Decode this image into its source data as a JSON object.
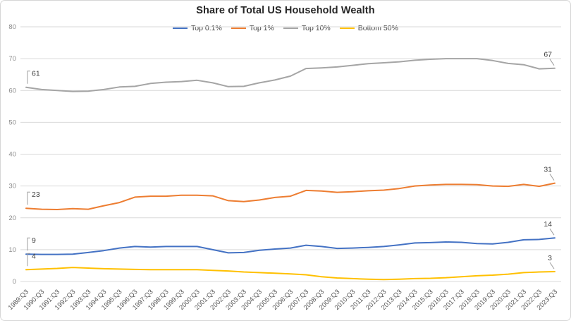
{
  "chart_data": {
    "type": "line",
    "title": "Share of Total US Household Wealth",
    "xlabel": "",
    "ylabel": "",
    "ylim": [
      0,
      80
    ],
    "yticks": [
      0,
      10,
      20,
      30,
      40,
      50,
      60,
      70,
      80
    ],
    "grid": true,
    "legend_position": "top-center",
    "gridline_color": "#d9d9d9",
    "x_labels": [
      "1989:Q3",
      "1990:Q3",
      "1991:Q3",
      "1992:Q3",
      "1993:Q3",
      "1994:Q3",
      "1995:Q3",
      "1996:Q3",
      "1997:Q3",
      "1998:Q3",
      "1999:Q3",
      "2000:Q3",
      "2001:Q3",
      "2002:Q3",
      "2003:Q3",
      "2004:Q3",
      "2005:Q3",
      "2006:Q3",
      "2007:Q3",
      "2008:Q3",
      "2009:Q3",
      "2010:Q3",
      "2011:Q3",
      "2012:Q3",
      "2013:Q3",
      "2014:Q3",
      "2015:Q3",
      "2016:Q3",
      "2017:Q3",
      "2018:Q3",
      "2019:Q3",
      "2020:Q3",
      "2021:Q3",
      "2022:Q3",
      "2023:Q3"
    ],
    "series": [
      {
        "name": "Top 0.1%",
        "color": "#4472C4",
        "values": [
          8.6,
          8.5,
          8.5,
          8.6,
          9.1,
          9.7,
          10.5,
          11.0,
          10.8,
          11.0,
          11.0,
          11.0,
          10.0,
          9.0,
          9.1,
          9.8,
          10.2,
          10.5,
          11.4,
          11.0,
          10.4,
          10.5,
          10.7,
          11.0,
          11.5,
          12.1,
          12.2,
          12.4,
          12.3,
          11.9,
          11.8,
          12.3,
          13.1,
          13.2,
          13.7
        ]
      },
      {
        "name": "Top 1%",
        "color": "#ED7D31",
        "values": [
          23.0,
          22.7,
          22.6,
          22.9,
          22.7,
          23.8,
          24.8,
          26.5,
          26.8,
          26.8,
          27.1,
          27.1,
          26.9,
          25.4,
          25.1,
          25.6,
          26.4,
          26.8,
          28.6,
          28.4,
          28.0,
          28.2,
          28.5,
          28.7,
          29.2,
          30.0,
          30.3,
          30.5,
          30.5,
          30.4,
          30.0,
          29.9,
          30.5,
          29.9,
          30.9
        ]
      },
      {
        "name": "Top 10%",
        "color": "#A5A5A5",
        "values": [
          61.0,
          60.3,
          60.0,
          59.7,
          59.8,
          60.3,
          61.1,
          61.3,
          62.2,
          62.6,
          62.8,
          63.2,
          62.4,
          61.2,
          61.3,
          62.4,
          63.3,
          64.5,
          66.9,
          67.1,
          67.4,
          67.9,
          68.4,
          68.7,
          69.0,
          69.5,
          69.8,
          70.0,
          70.0,
          70.0,
          69.4,
          68.5,
          68.1,
          66.8,
          67.0
        ]
      },
      {
        "name": "Bottom 50%",
        "color": "#FFC000",
        "values": [
          3.7,
          3.9,
          4.1,
          4.4,
          4.2,
          4.0,
          3.9,
          3.8,
          3.7,
          3.7,
          3.7,
          3.7,
          3.5,
          3.3,
          3.0,
          2.8,
          2.6,
          2.4,
          2.1,
          1.5,
          1.1,
          0.9,
          0.7,
          0.6,
          0.7,
          0.9,
          1.0,
          1.2,
          1.5,
          1.8,
          2.0,
          2.3,
          2.8,
          3.0,
          3.1
        ]
      }
    ],
    "point_labels": [
      {
        "series": "Top 10%",
        "position": "start",
        "text": "61"
      },
      {
        "series": "Top 1%",
        "position": "start",
        "text": "23"
      },
      {
        "series": "Top 0.1%",
        "position": "start",
        "text": "9"
      },
      {
        "series": "Bottom 50%",
        "position": "start",
        "text": "4"
      },
      {
        "series": "Top 10%",
        "position": "end",
        "text": "67"
      },
      {
        "series": "Top 1%",
        "position": "end",
        "text": "31"
      },
      {
        "series": "Top 0.1%",
        "position": "end",
        "text": "14"
      },
      {
        "series": "Bottom 50%",
        "position": "end",
        "text": "3"
      }
    ]
  }
}
